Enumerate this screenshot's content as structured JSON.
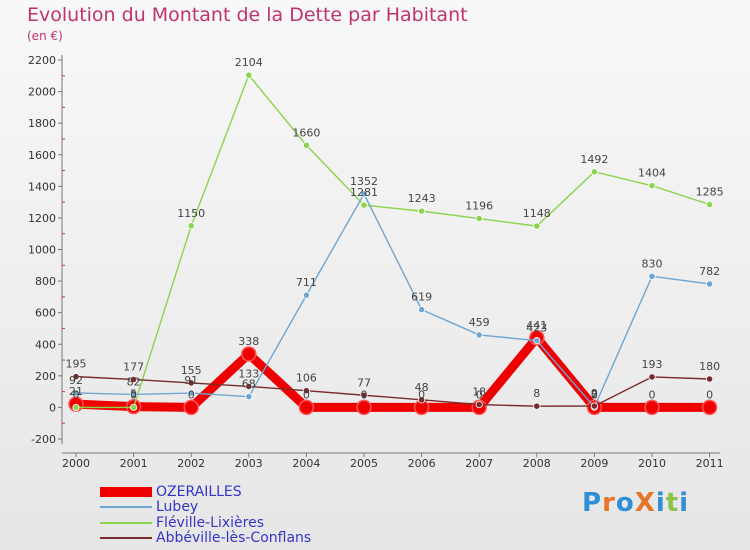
{
  "title": "Evolution du Montant de la Dette par Habitant",
  "subtitle": "(en €)",
  "brand": "ProXiti",
  "chart_data": {
    "type": "line",
    "x": [
      "2000",
      "2001",
      "2002",
      "2003",
      "2004",
      "2005",
      "2006",
      "2007",
      "2008",
      "2009",
      "2010",
      "2011"
    ],
    "ylim": [
      -200,
      2200
    ],
    "yticks": [
      -200,
      0,
      200,
      400,
      600,
      800,
      1000,
      1200,
      1400,
      1600,
      1800,
      2000,
      2200
    ],
    "grid": false,
    "legend_position": "bottom-left",
    "series": [
      {
        "name": "OZERAILLES",
        "color": "#ee0000",
        "values": [
          21,
          5,
          0,
          338,
          0,
          0,
          0,
          0,
          441,
          0,
          0,
          0
        ],
        "labels": [
          "21",
          "5",
          "0",
          "338",
          "0",
          "0",
          "0",
          "0",
          "441",
          "0",
          "0",
          "0"
        ]
      },
      {
        "name": "Lubey",
        "color": "#6ea6d2",
        "values": [
          92,
          82,
          91,
          68,
          711,
          1352,
          619,
          459,
          423,
          2,
          830,
          782
        ],
        "labels": [
          "92",
          "82",
          "91",
          "68",
          "711",
          "1352",
          "619",
          "459",
          "423",
          "2",
          "830",
          "782"
        ]
      },
      {
        "name": "Fléville-Lixières",
        "color": "#8bd44c",
        "values": [
          0,
          0,
          1150,
          2104,
          1660,
          1281,
          1243,
          1196,
          1148,
          1492,
          1404,
          1285
        ],
        "labels": [
          "0",
          "0",
          "1150",
          "2104",
          "1660",
          "1281",
          "1243",
          "1196",
          "1148",
          "1492",
          "1404",
          "1285"
        ]
      },
      {
        "name": "Abbéville-lès-Conflans",
        "color": "#7a2a2a",
        "values": [
          195,
          177,
          155,
          133,
          106,
          77,
          48,
          18,
          8,
          9,
          193,
          180
        ],
        "labels": [
          "195",
          "177",
          "155",
          "133",
          "106",
          "77",
          "48",
          "18",
          "8",
          "9",
          "193",
          "180"
        ]
      }
    ]
  }
}
